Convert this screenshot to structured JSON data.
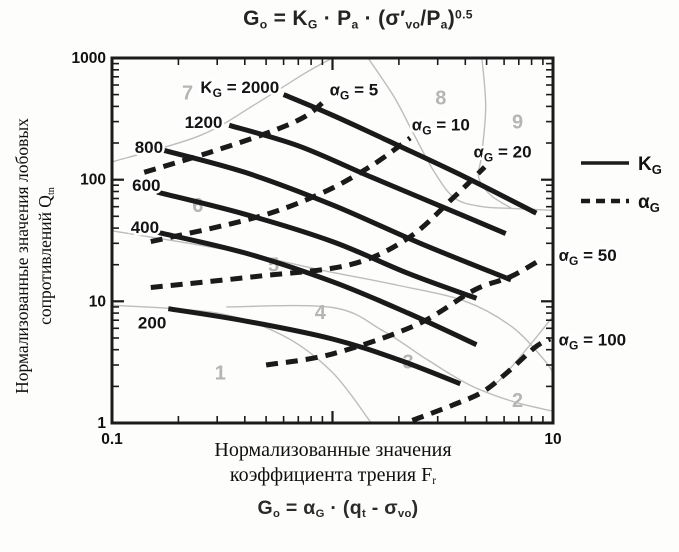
{
  "title_formula": {
    "s1": "G",
    "s2": "o",
    "s3": " = K",
    "s4": "G",
    "s5": " · P",
    "s6": "a",
    "s7": " · (σ′",
    "s8": "vo",
    "s9": "/P",
    "s10": "a",
    "s11": ")",
    "s12": "0.5"
  },
  "bottom_formula": {
    "s1": "G",
    "s2": "o",
    "s3": " = α",
    "s4": "G",
    "s5": " · (q",
    "s6": "t",
    "s7": " - σ",
    "s8": "vo",
    "s9": ")"
  },
  "y_axis_title": {
    "line1": "Нормализованные значения лобовых",
    "line2": "сопротивлений Q",
    "sub": "tn"
  },
  "x_axis_title": {
    "line1": "Нормализованные значения",
    "line2": "коэффициента трения F",
    "sub": "r"
  },
  "legend": {
    "items": [
      {
        "style": "solid",
        "main": "K",
        "sub": "G"
      },
      {
        "style": "dashed",
        "main": "α",
        "sub": "G"
      }
    ]
  },
  "chart_data": {
    "type": "line",
    "title": "Go = KG · Pa · (σ′vo/Pa)^0.5",
    "xlabel": "Нормализованные значения коэффициента трения Fr",
    "ylabel": "Нормализованные значения лобовых сопротивлений Qtn",
    "x_scale": "log",
    "y_scale": "log",
    "xlim": [
      0.1,
      10
    ],
    "ylim": [
      1,
      1000
    ],
    "grid": false,
    "legend_position": "right",
    "line_color": "#1a1a1a",
    "zone_line_color": "#bdbdbd",
    "zone_label_color": "#b5b5b5",
    "x_tick_labels": [
      {
        "value": 0.1,
        "text": "0.1"
      },
      {
        "value": 10,
        "text": "10"
      }
    ],
    "y_tick_labels": [
      {
        "value": 1,
        "text": "1"
      },
      {
        "value": 10,
        "text": "10"
      },
      {
        "value": 100,
        "text": "100"
      },
      {
        "value": 1000,
        "text": "1000"
      }
    ],
    "series": [
      {
        "name": "KG-2000",
        "style": "solid",
        "points": [
          [
            0.6,
            500
          ],
          [
            1.0,
            339
          ],
          [
            2.0,
            190
          ],
          [
            4.0,
            105
          ],
          [
            8.4,
            53
          ]
        ],
        "label": {
          "main": "K",
          "sub": "G",
          "rest": " = 2000",
          "at": [
            0.38,
            580
          ],
          "anchor": "middle"
        }
      },
      {
        "name": "KG-1200",
        "style": "solid",
        "points": [
          [
            0.34,
            280
          ],
          [
            0.7,
            190
          ],
          [
            1.5,
            105
          ],
          [
            3.0,
            62
          ],
          [
            6.1,
            36
          ]
        ],
        "label": {
          "rest": "1200",
          "at": [
            0.26,
            297
          ],
          "anchor": "middle"
        }
      },
      {
        "name": "KG-800",
        "style": "solid",
        "points": [
          [
            0.17,
            175
          ],
          [
            0.4,
            115
          ],
          [
            1.0,
            62
          ],
          [
            2.5,
            30
          ],
          [
            6.45,
            15
          ]
        ],
        "label": {
          "rest": "800",
          "at": [
            0.147,
            185
          ],
          "anchor": "middle"
        }
      },
      {
        "name": "KG-600",
        "style": "solid",
        "points": [
          [
            0.16,
            79
          ],
          [
            0.4,
            52
          ],
          [
            1.0,
            31
          ],
          [
            2.2,
            17
          ],
          [
            4.5,
            10.6
          ]
        ],
        "label": {
          "rest": "600",
          "at": [
            0.143,
            90
          ],
          "anchor": "middle"
        }
      },
      {
        "name": "KG-400",
        "style": "solid",
        "points": [
          [
            0.16,
            37
          ],
          [
            0.4,
            25
          ],
          [
            1.0,
            14.5
          ],
          [
            2.2,
            8
          ],
          [
            4.5,
            4.4
          ]
        ],
        "label": {
          "rest": "400",
          "at": [
            0.141,
            41
          ],
          "anchor": "middle"
        }
      },
      {
        "name": "KG-200",
        "style": "solid",
        "points": [
          [
            0.18,
            8.7
          ],
          [
            0.4,
            6.9
          ],
          [
            1.0,
            4.9
          ],
          [
            2.0,
            3.3
          ],
          [
            3.8,
            2.1
          ]
        ],
        "label": {
          "rest": "200",
          "at": [
            0.152,
            6.7
          ],
          "anchor": "middle"
        }
      },
      {
        "name": "aG-5",
        "style": "dashed",
        "points": [
          [
            0.14,
            115
          ],
          [
            0.27,
            165
          ],
          [
            0.5,
            240
          ],
          [
            0.75,
            330
          ],
          [
            0.95,
            470
          ]
        ],
        "label": {
          "main": "α",
          "sub": "G",
          "rest": " = 5",
          "at": [
            1.25,
            550
          ],
          "anchor": "middle"
        }
      },
      {
        "name": "aG-10",
        "style": "dashed",
        "points": [
          [
            0.15,
            31
          ],
          [
            0.45,
            49
          ],
          [
            0.9,
            78
          ],
          [
            1.5,
            130
          ],
          [
            2.25,
            220
          ]
        ],
        "label": {
          "main": "α",
          "sub": "G",
          "rest": " = 10",
          "at": [
            3.1,
            285
          ],
          "anchor": "middle"
        }
      },
      {
        "name": "aG-20",
        "style": "dashed",
        "points": [
          [
            0.15,
            13
          ],
          [
            0.45,
            16
          ],
          [
            1.2,
            20
          ],
          [
            2.2,
            33
          ],
          [
            3.5,
            70
          ],
          [
            4.9,
            127
          ]
        ],
        "label": {
          "main": "α",
          "sub": "G",
          "rest": " = 20",
          "at": [
            5.9,
            170
          ],
          "anchor": "middle"
        }
      },
      {
        "name": "aG-50",
        "style": "dashed",
        "points": [
          [
            0.5,
            3.0
          ],
          [
            1.0,
            3.7
          ],
          [
            2.4,
            6.4
          ],
          [
            4.4,
            12.4
          ],
          [
            6.4,
            15.9
          ],
          [
            9.0,
            22.6
          ]
        ],
        "label": {
          "main": "α",
          "sub": "G",
          "rest": " = 50",
          "at": [
            10.6,
            24
          ],
          "anchor": "start"
        }
      },
      {
        "name": "aG-100",
        "style": "dashed",
        "points": [
          [
            2.3,
            1.05
          ],
          [
            3.5,
            1.4
          ],
          [
            4.8,
            1.8
          ],
          [
            6.2,
            2.6
          ],
          [
            8.3,
            4.2
          ],
          [
            9.7,
            4.9
          ]
        ],
        "label": {
          "main": "α",
          "sub": "G",
          "rest": " = 100",
          "at": [
            10.6,
            4.85
          ],
          "anchor": "start"
        }
      }
    ],
    "zone_boundaries": [
      {
        "name": "zone1-left",
        "points": [
          [
            0.1,
            9.3
          ],
          [
            0.3,
            8.0
          ],
          [
            0.6,
            5.2
          ],
          [
            1.0,
            2.6
          ],
          [
            1.5,
            1.0
          ]
        ]
      },
      {
        "name": "zone7-upper",
        "points": [
          [
            0.1,
            140
          ],
          [
            0.25,
            230
          ],
          [
            0.45,
            420
          ],
          [
            0.75,
            750
          ],
          [
            1.0,
            1000
          ]
        ]
      },
      {
        "name": "zone8-left",
        "points": [
          [
            1.45,
            1000
          ],
          [
            1.9,
            480
          ],
          [
            2.3,
            250
          ],
          [
            2.9,
            115
          ],
          [
            3.6,
            70
          ],
          [
            4.8,
            60
          ],
          [
            6.5,
            58
          ]
        ]
      },
      {
        "name": "zone8-9",
        "points": [
          [
            4.76,
            1000
          ],
          [
            4.95,
            400
          ],
          [
            4.75,
            160
          ],
          [
            4.6,
            105
          ],
          [
            5.2,
            75
          ],
          [
            6.5,
            58
          ]
        ]
      },
      {
        "name": "zone9-right",
        "points": [
          [
            6.5,
            58
          ],
          [
            10,
            56
          ]
        ]
      },
      {
        "name": "zone2-upper",
        "points": [
          [
            0.33,
            9.0
          ],
          [
            1.0,
            8.9
          ],
          [
            1.7,
            5.7
          ],
          [
            2.7,
            3.3
          ],
          [
            4.2,
            2.05
          ],
          [
            6.6,
            1.5
          ],
          [
            10,
            1.25
          ]
        ]
      },
      {
        "name": "zone5-6-arc",
        "points": [
          [
            0.1,
            38
          ],
          [
            0.35,
            26
          ],
          [
            0.9,
            18
          ],
          [
            2.0,
            13.5
          ],
          [
            4.0,
            10
          ],
          [
            6.5,
            6.2
          ],
          [
            9.0,
            3.4
          ],
          [
            10,
            2.6
          ]
        ]
      },
      {
        "name": "zone2-9",
        "points": [
          [
            10,
            7.5
          ],
          [
            8.5,
            5.2
          ],
          [
            7.0,
            3.4
          ],
          [
            5.8,
            2.3
          ],
          [
            5.0,
            1.85
          ]
        ]
      }
    ],
    "zone_labels": [
      {
        "text": "1",
        "at": [
          0.31,
          2.6
        ]
      },
      {
        "text": "2",
        "at": [
          6.9,
          1.55
        ]
      },
      {
        "text": "3",
        "at": [
          2.2,
          3.2
        ]
      },
      {
        "text": "4",
        "at": [
          0.88,
          8.2
        ]
      },
      {
        "text": "5",
        "at": [
          0.54,
          20
        ]
      },
      {
        "text": "6",
        "at": [
          0.245,
          62
        ]
      },
      {
        "text": "7",
        "at": [
          0.22,
          520
        ]
      },
      {
        "text": "8",
        "at": [
          3.1,
          475
        ]
      },
      {
        "text": "9",
        "at": [
          6.9,
          300
        ]
      }
    ]
  }
}
